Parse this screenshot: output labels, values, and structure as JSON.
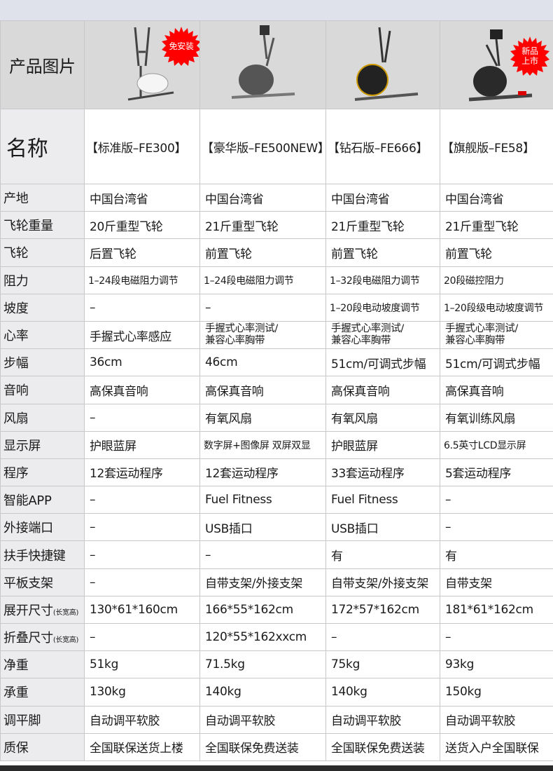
{
  "header": {
    "image_label": "产品图片",
    "name_label": "名称"
  },
  "badges": {
    "p1": "免安装",
    "p4_l1": "新品",
    "p4_l2": "上市",
    "color": "#ff0000"
  },
  "products": [
    "【标准版–FE300】",
    "【豪华版–FE500NEW】",
    "【钻石版–FE666】",
    "【旗舰版–FE58】"
  ],
  "rows": [
    {
      "label": "产地",
      "v": [
        "中国台湾省",
        "中国台湾省",
        "中国台湾省",
        "中国台湾省"
      ]
    },
    {
      "label": "飞轮重量",
      "v": [
        "20斤重型飞轮",
        "21斤重型飞轮",
        "21斤重型飞轮",
        "21斤重型飞轮"
      ]
    },
    {
      "label": "飞轮",
      "v": [
        "后置飞轮",
        "前置飞轮",
        "前置飞轮",
        "前置飞轮"
      ]
    },
    {
      "label": "阻力",
      "v": [
        "1–24段电磁阻力调节",
        "1–24段电磁阻力调节",
        "1–32段电磁阻力调节",
        "20段磁控阻力"
      ]
    },
    {
      "label": "坡度",
      "v": [
        "–",
        "–",
        "1–20段电动坡度调节",
        "1–20段级电动坡度调节"
      ]
    },
    {
      "label": "心率",
      "v": [
        "手握式心率感应",
        "手握式心率测试/",
        "手握式心率测试/",
        "手握式心率测试/"
      ],
      "v2": [
        "",
        "兼容心率胸带",
        "兼容心率胸带",
        "兼容心率胸带"
      ]
    },
    {
      "label": "步幅",
      "v": [
        "36cm",
        "46cm",
        "51cm/可调式步幅",
        "51cm/可调式步幅"
      ]
    },
    {
      "label": "音响",
      "v": [
        "高保真音响",
        "高保真音响",
        "高保真音响",
        "高保真音响"
      ]
    },
    {
      "label": "风扇",
      "v": [
        "–",
        "有氧风扇",
        "有氧风扇",
        "有氧训练风扇"
      ]
    },
    {
      "label": "显示屏",
      "v": [
        "护眼蓝屏",
        "数字屏+图像屏 双屏双显",
        "护眼蓝屏",
        "6.5英寸LCD显示屏"
      ]
    },
    {
      "label": "程序",
      "v": [
        "12套运动程序",
        "12套运动程序",
        "33套运动程序",
        "5套运动程序"
      ]
    },
    {
      "label": "智能APP",
      "v": [
        "–",
        "Fuel Fitness",
        "Fuel Fitness",
        "–"
      ]
    },
    {
      "label": "外接端口",
      "v": [
        "–",
        "USB插口",
        "USB插口",
        "–"
      ]
    },
    {
      "label": "扶手快捷键",
      "v": [
        "–",
        "–",
        "有",
        "有"
      ]
    },
    {
      "label": "平板支架",
      "v": [
        "–",
        "自带支架/外接支架",
        "自带支架/外接支架",
        "自带支架"
      ]
    },
    {
      "label": "展开尺寸",
      "unit": "(长宽高)",
      "v": [
        "130*61*160cm",
        "166*55*162cm",
        "172*57*162cm",
        "181*61*162cm"
      ]
    },
    {
      "label": "折叠尺寸",
      "unit": "(长宽高)",
      "v": [
        "–",
        "120*55*162xxcm",
        "–",
        "–"
      ]
    },
    {
      "label": "净重",
      "v": [
        "51kg",
        "71.5kg",
        "75kg",
        "93kg"
      ]
    },
    {
      "label": "承重",
      "v": [
        "130kg",
        "140kg",
        "140kg",
        "150kg"
      ]
    },
    {
      "label": "调平脚",
      "v": [
        "自动调平软胶",
        "自动调平软胶",
        "自动调平软胶",
        "自动调平软胶"
      ]
    },
    {
      "label": "质保",
      "v": [
        "全国联保送货上楼",
        "全国联保免费送装",
        "全国联保免费送装",
        "送货入户全国联保"
      ]
    }
  ]
}
